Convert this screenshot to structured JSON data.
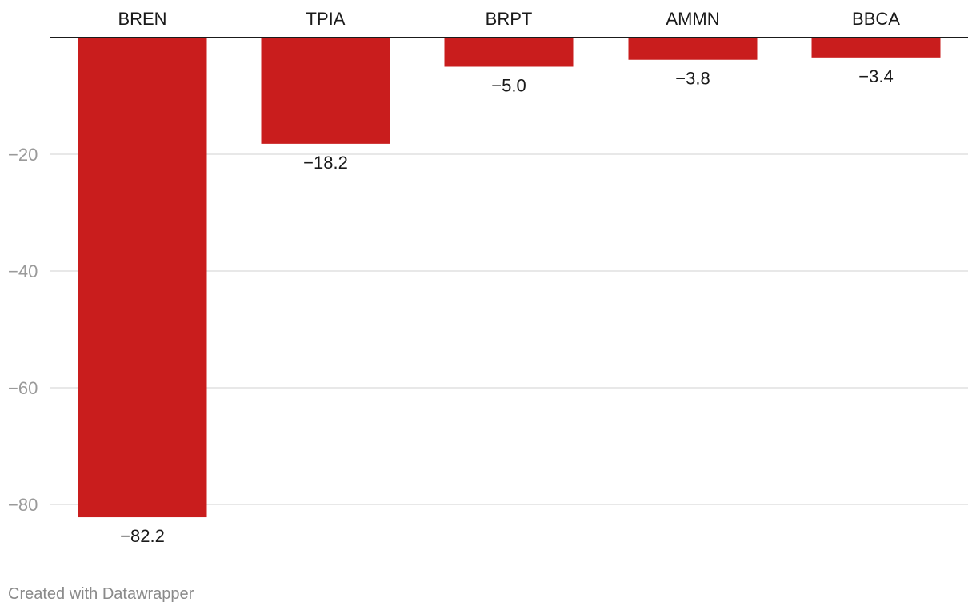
{
  "chart_data": {
    "type": "bar",
    "categories": [
      "BREN",
      "TPIA",
      "BRPT",
      "AMMN",
      "BBCA"
    ],
    "values": [
      -82.2,
      -18.2,
      -5.0,
      -3.8,
      -3.4
    ],
    "value_labels": [
      "−82.2",
      "−18.2",
      "−5.0",
      "−3.8",
      "−3.4"
    ],
    "yticks": [
      -20,
      -40,
      -60,
      -80
    ],
    "ytick_labels": [
      "−20",
      "−40",
      "−60",
      "−80"
    ],
    "ylim": [
      -85,
      0
    ],
    "bar_color": "#c91d1d",
    "category_axis_position": "top",
    "grid": true
  },
  "footer": {
    "credit": "Created with Datawrapper"
  }
}
